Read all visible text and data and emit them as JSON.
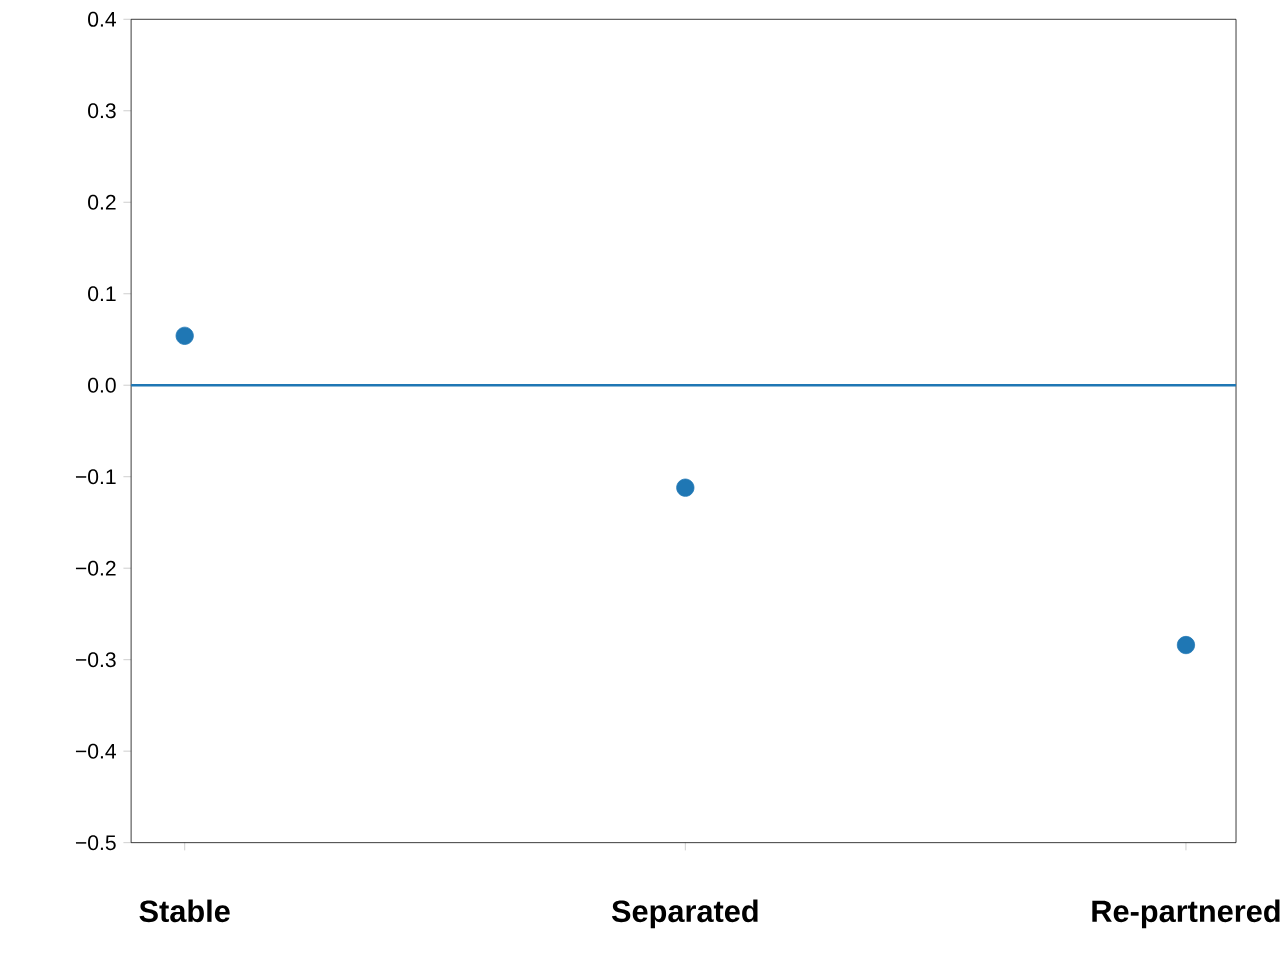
{
  "chart_data": {
    "type": "scatter",
    "categories": [
      "Stable",
      "Separated",
      "Re-partnered"
    ],
    "series": [
      {
        "color": "#1f77b4",
        "values": [
          0.054,
          -0.112,
          -0.284
        ]
      }
    ],
    "marker": "circle",
    "ylim": [
      -0.5,
      0.4
    ],
    "yticks": [
      {
        "value": -0.5,
        "label": "−0.5"
      },
      {
        "value": -0.4,
        "label": "−0.4"
      },
      {
        "value": -0.3,
        "label": "−0.3"
      },
      {
        "value": -0.2,
        "label": "−0.2"
      },
      {
        "value": -0.1,
        "label": "−0.1"
      },
      {
        "value": 0,
        "label": "0.0"
      },
      {
        "value": 0.1,
        "label": "0.1"
      },
      {
        "value": 0.2,
        "label": "0.2"
      },
      {
        "value": 0.3,
        "label": "0.3"
      },
      {
        "value": 0.4,
        "label": "0.4"
      }
    ],
    "ref_lines": [
      {
        "axis": "y",
        "value": 0,
        "color": "#1f77b4",
        "line_style": "solid"
      }
    ],
    "grid": false
  }
}
